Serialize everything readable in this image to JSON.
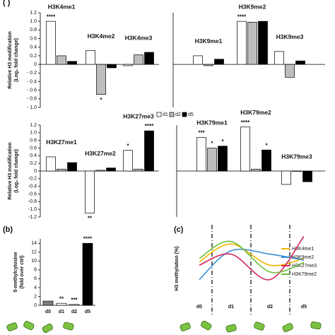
{
  "chart_data": [
    {
      "type": "bar",
      "panel": "( )",
      "ylabel": [
        "Relative H3 modification",
        "(Log₂ fold change)"
      ],
      "categories": [
        "H3K4me1",
        "H3K4me2",
        "H3K4me3"
      ],
      "series": [
        {
          "color": "#ffffff",
          "values": [
            1.0,
            0.32,
            -0.03
          ],
          "significance": [
            "****",
            null,
            null
          ]
        },
        {
          "color": "#bdbdbd",
          "values": [
            0.2,
            -0.7,
            0.22
          ],
          "significance": [
            null,
            "*",
            null
          ]
        },
        {
          "color": "#000000",
          "values": [
            0.07,
            -0.08,
            0.28
          ],
          "significance": [
            null,
            null,
            null
          ]
        }
      ],
      "ylim": [
        -1.0,
        1.2
      ],
      "yticks": [
        1.2,
        {
          "value": 1.0,
          "label": "1.0"
        },
        0.8,
        0.6,
        0.4,
        0.2,
        0,
        {
          "value": -0.2,
          "label": "- 0.2"
        },
        {
          "value": -0.4,
          "label": "- 0.4"
        },
        {
          "value": -0.6,
          "label": "- 0.6"
        },
        {
          "value": -0.8,
          "label": "- 0.8"
        },
        {
          "value": -1.0,
          "label": "- 1.0"
        }
      ]
    },
    {
      "type": "bar",
      "categories": [
        "H3K9me1",
        "H3K9me2",
        "H3K9me3"
      ],
      "series": [
        {
          "color": "#ffffff",
          "values": [
            0.2,
            1.0,
            0.3
          ],
          "significance": [
            null,
            "****",
            null
          ]
        },
        {
          "color": "#bdbdbd",
          "values": [
            -0.03,
            0.98,
            -0.3
          ],
          "significance": [
            null,
            null,
            null
          ]
        },
        {
          "color": "#000000",
          "values": [
            0.12,
            1.0,
            0.08
          ],
          "significance": [
            null,
            null,
            null
          ]
        }
      ],
      "ylim": [
        -1.0,
        1.2
      ]
    },
    {
      "type": "bar",
      "ylabel": [
        "Relative H3 modification",
        "(Log₂ fold change)"
      ],
      "categories": [
        "H3K27me1",
        "H3K27me2",
        "H3K27me3"
      ],
      "series": [
        {
          "name": "d1",
          "color": "#ffffff",
          "values": [
            0.37,
            -1.1,
            0.54
          ],
          "significance": [
            null,
            "**",
            "*"
          ]
        },
        {
          "name": "d2",
          "color": "#bdbdbd",
          "values": [
            0.05,
            0.02,
            0.05
          ],
          "significance": [
            null,
            null,
            null
          ]
        },
        {
          "name": "d5",
          "color": "#000000",
          "values": [
            0.22,
            0.08,
            1.05
          ],
          "significance": [
            null,
            null,
            "****"
          ]
        }
      ],
      "legend": true,
      "ylim": [
        -1.2,
        1.2
      ],
      "yticks": [
        1.2,
        {
          "value": 1.0,
          "label": "1.0"
        },
        0.8,
        0.6,
        0.4,
        0.2,
        0,
        -0.2,
        -0.4,
        -0.6,
        -0.8,
        {
          "value": -1.0,
          "label": "-1.0"
        },
        -1.2
      ]
    },
    {
      "type": "bar",
      "categories": [
        "H3K79me1",
        "H3K79me2",
        "H3K79me3"
      ],
      "series": [
        {
          "color": "#ffffff",
          "values": [
            0.88,
            1.15,
            -0.35
          ],
          "significance": [
            "***",
            "****",
            null
          ]
        },
        {
          "color": "#bdbdbd",
          "values": [
            0.6,
            0.05,
            0.0
          ],
          "significance": [
            "*",
            null,
            null
          ]
        },
        {
          "color": "#000000",
          "values": [
            0.65,
            0.55,
            -0.28
          ],
          "significance": [
            "*",
            "*",
            null
          ]
        }
      ],
      "ylim": [
        -1.2,
        1.2
      ]
    },
    {
      "type": "column",
      "panel": "(b)",
      "ylabel": [
        "5-methylcytosine",
        "(fold over ctrl)"
      ],
      "categories": [
        "d0",
        "d1",
        "d2",
        "d5"
      ],
      "values": [
        0.95,
        0.45,
        0.2,
        14
      ],
      "colors": [
        "#7f7f7f",
        "#ffffff",
        "#ffffff",
        "#000000"
      ],
      "significance": [
        null,
        "**",
        "***",
        "****"
      ],
      "ylim": [
        0,
        15
      ],
      "yticks": [
        0,
        2,
        4,
        6,
        8,
        10,
        12,
        14
      ]
    },
    {
      "type": "line",
      "panel": "(c)",
      "ylabel": [
        "H3 methylation (%)"
      ],
      "categories": [
        "d0",
        "d1",
        "d2",
        "d5"
      ],
      "series": [
        {
          "name": "H3K4me1",
          "color": "#f2b600",
          "values": [
            58,
            79,
            54,
            62
          ]
        },
        {
          "name": "H3K9me2",
          "color": "#3a8fd6",
          "values": [
            37,
            71,
            67,
            60
          ]
        },
        {
          "name": "H3K27me3",
          "color": "#d6245a",
          "values": [
            54,
            67,
            37,
            88
          ]
        },
        {
          "name": "H3K79me2",
          "color": "#6cbf3a",
          "values": [
            62,
            82,
            46,
            57
          ]
        }
      ],
      "ylim": [
        0,
        100
      ]
    }
  ]
}
